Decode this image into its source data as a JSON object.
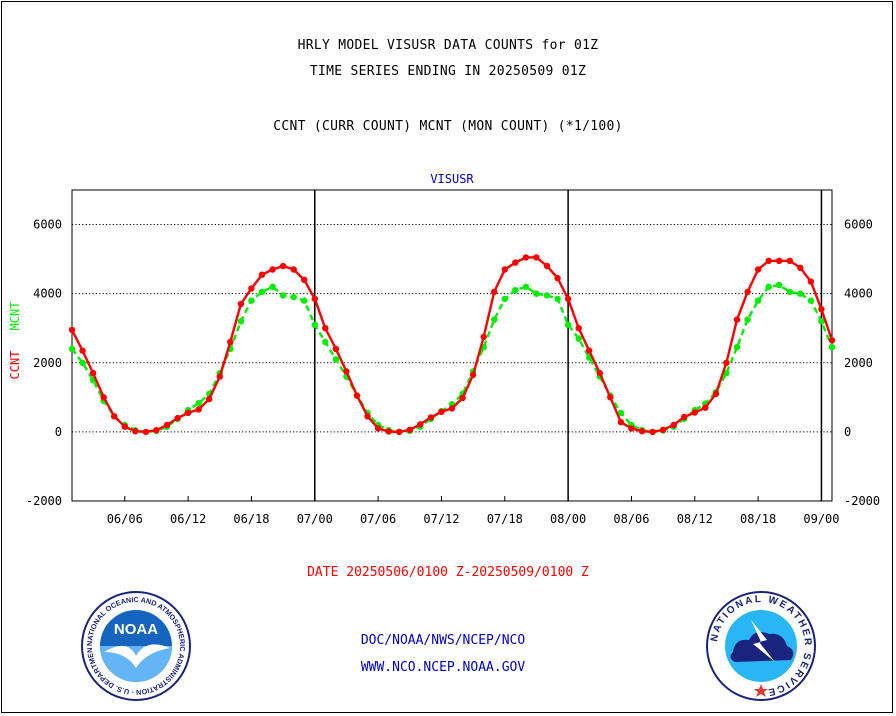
{
  "header": {
    "line1": "HRLY MODEL VISUSR DATA COUNTS for 01Z",
    "line2": "TIME SERIES ENDING IN 20250509 01Z",
    "line3": "CCNT (CURR COUNT) MCNT (MON COUNT) (*1/100)"
  },
  "footer": {
    "date_range": "DATE 20250506/0100 Z-20250509/0100 Z",
    "org_line": "DOC/NOAA/NWS/NCEP/NCO",
    "url_line": "WWW.NCO.NCEP.NOAA.GOV"
  },
  "logos": {
    "noaa_text": "NOAA",
    "noaa_ring": "NATIONAL OCEANIC AND ATMOSPHERIC ADMINISTRATION · U.S. DEPARTMENT OF COMMERCE",
    "nws_ring": "NATIONAL WEATHER SERVICE"
  },
  "colors": {
    "ccnt": "#ff0000",
    "mcnt": "#00ee00",
    "title": "#0000cc",
    "date": "#ff0000",
    "footer": "#0000cc"
  },
  "chart_data": {
    "type": "line",
    "title": "VISUSR",
    "ylabel_left_1": "CCNT",
    "ylabel_left_2": "MCNT",
    "ylim": [
      -2000,
      7000
    ],
    "yticks": [
      -2000,
      0,
      2000,
      4000,
      6000
    ],
    "grid": true,
    "x_unit": "hours since 05/06 01Z",
    "xlim": [
      0,
      72
    ],
    "xtick_positions": [
      5,
      11,
      17,
      23,
      29,
      35,
      41,
      47,
      53,
      59,
      65,
      71
    ],
    "xtick_labels": [
      "06/06",
      "06/12",
      "06/18",
      "07/00",
      "07/06",
      "07/12",
      "07/18",
      "08/00",
      "08/06",
      "08/12",
      "08/18",
      "09/00"
    ],
    "day_lines": [
      23,
      47,
      71
    ],
    "series": [
      {
        "name": "CCNT",
        "values": [
          2950,
          2350,
          1700,
          1000,
          450,
          150,
          20,
          0,
          50,
          200,
          400,
          550,
          650,
          950,
          1600,
          2600,
          3700,
          4150,
          4550,
          4700,
          4800,
          4700,
          4400,
          3850,
          3000,
          2400,
          1750,
          1050,
          450,
          100,
          10,
          0,
          60,
          220,
          420,
          580,
          680,
          980,
          1650,
          2750,
          4050,
          4700,
          4900,
          5050,
          5050,
          4800,
          4450,
          3850,
          3000,
          2350,
          1700,
          1000,
          280,
          100,
          20,
          0,
          60,
          200,
          430,
          560,
          700,
          1100,
          2000,
          3250,
          4050,
          4700,
          4950,
          4950,
          4950,
          4750,
          4350,
          3550,
          2650
        ]
      },
      {
        "name": "MCNT",
        "values": [
          2400,
          2000,
          1500,
          900,
          450,
          200,
          50,
          0,
          30,
          150,
          380,
          630,
          830,
          1100,
          1700,
          2400,
          3200,
          3800,
          4050,
          4200,
          3950,
          3900,
          3800,
          3100,
          2600,
          2100,
          1600,
          1050,
          550,
          200,
          50,
          0,
          30,
          150,
          380,
          600,
          800,
          1100,
          1750,
          2450,
          3250,
          3850,
          4100,
          4200,
          4000,
          3950,
          3850,
          3100,
          2700,
          2150,
          1600,
          1050,
          550,
          200,
          50,
          0,
          40,
          150,
          380,
          630,
          820,
          1150,
          1700,
          2450,
          3250,
          3800,
          4200,
          4250,
          4050,
          4000,
          3800,
          3200,
          2450
        ]
      }
    ]
  }
}
